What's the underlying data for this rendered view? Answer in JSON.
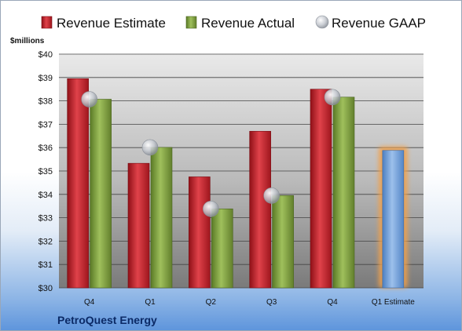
{
  "chart_data": {
    "type": "bar",
    "categories": [
      "Q4",
      "Q1",
      "Q2",
      "Q3",
      "Q4",
      "Q1 Estimate"
    ],
    "series": [
      {
        "name": "Revenue Estimate",
        "values": [
          38.95,
          35.33,
          34.75,
          36.7,
          38.5,
          null
        ]
      },
      {
        "name": "Revenue Actual",
        "values": [
          38.07,
          36.01,
          33.38,
          33.95,
          38.16,
          35.88
        ]
      },
      {
        "name": "Revenue GAAP",
        "values": [
          38.07,
          36.01,
          33.38,
          33.95,
          38.16,
          null
        ]
      }
    ],
    "ylabel": "$millions",
    "ylim": [
      30,
      40
    ],
    "yticks": [
      "$30",
      "$31",
      "$32",
      "$33",
      "$34",
      "$35",
      "$36",
      "$37",
      "$38",
      "$39",
      "$40"
    ],
    "grid": true,
    "legend": "top",
    "company": "PetroQuest Energy",
    "colors": {
      "estimate": "#c8262d",
      "actual": "#7fa042",
      "forecast": "#6f9fd8",
      "gaap": "#b7bcc4"
    }
  }
}
